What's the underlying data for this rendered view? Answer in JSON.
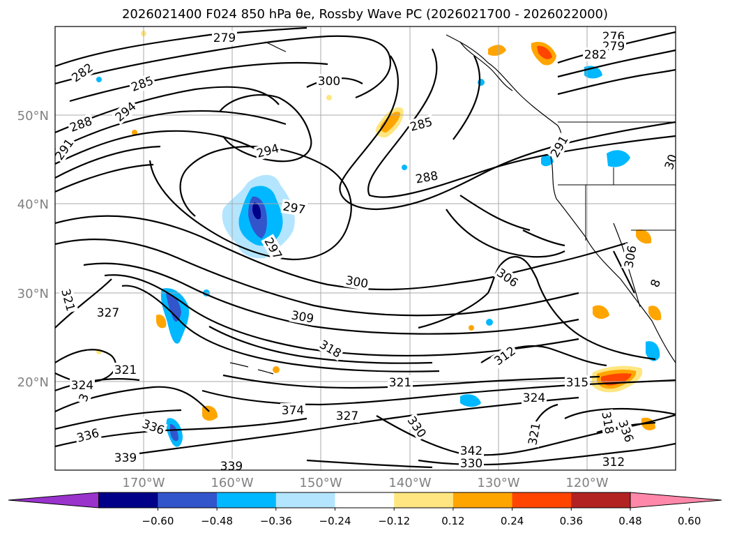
{
  "map": {
    "title": "2026021400 F024 850 hPa θe, Rossby Wave PC (2026021700 - 2026022000)",
    "region": "North Pacific",
    "lat_ticks": [
      "50°N",
      "40°N",
      "30°N",
      "20°N"
    ],
    "lon_ticks": [
      "170°W",
      "160°W",
      "150°W",
      "140°W",
      "130°W",
      "120°W"
    ],
    "contour_labels": [
      "279",
      "276",
      "279",
      "282",
      "282",
      "285",
      "288",
      "291",
      "294",
      "300",
      "285",
      "288",
      "294",
      "297",
      "297",
      "291",
      "30",
      "306",
      "300",
      "306",
      "321",
      "327",
      "309",
      "318",
      "312",
      "321",
      "315",
      "324",
      "324",
      "321",
      "374",
      "327",
      "336",
      "330",
      "336",
      "339",
      "339",
      "342",
      "330",
      "321",
      "318",
      "336",
      "312",
      "8",
      "3"
    ]
  },
  "colorbar": {
    "ticks": [
      "−0.60",
      "−0.48",
      "−0.36",
      "−0.24",
      "−0.12",
      "0.12",
      "0.24",
      "0.36",
      "0.48",
      "0.60"
    ],
    "colors": [
      "#9933cc",
      "#000088",
      "#3355cc",
      "#00b8ff",
      "#b3e5ff",
      "#ffffff",
      "#ffe680",
      "#ffa500",
      "#ff4500",
      "#b22222",
      "#ff88aa"
    ]
  }
}
